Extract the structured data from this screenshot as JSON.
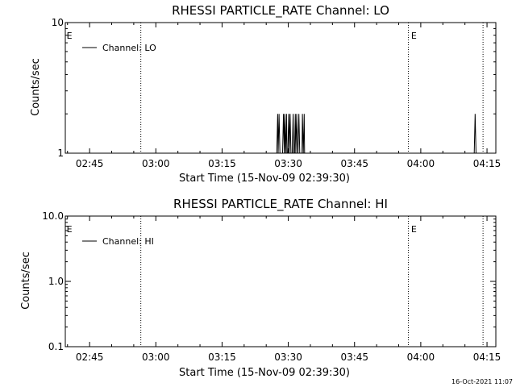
{
  "colors": {
    "background": "#ffffff",
    "foreground": "#000000"
  },
  "chart_data": [
    {
      "type": "line",
      "title": "RHESSI PARTICLE_RATE Channel: LO",
      "xlabel": "Start Time (15-Nov-09 02:39:30)",
      "ylabel": "Counts/sec",
      "x_unit": "minutes after start time",
      "xlim": [
        0,
        97.5
      ],
      "x_ticks": [
        {
          "t": 5.5,
          "label": "02:45"
        },
        {
          "t": 20.5,
          "label": "03:00"
        },
        {
          "t": 35.5,
          "label": "03:15"
        },
        {
          "t": 50.5,
          "label": "03:30"
        },
        {
          "t": 65.5,
          "label": "03:45"
        },
        {
          "t": 80.5,
          "label": "04:00"
        },
        {
          "t": 95.5,
          "label": "04:15"
        }
      ],
      "y_scale": "log",
      "ylim": [
        1,
        10
      ],
      "y_ticks": [
        {
          "v": 1,
          "label": "1"
        },
        {
          "v": 10,
          "label": "10"
        }
      ],
      "legend": {
        "label": "Channel: LO",
        "position": "top-left"
      },
      "event_lines": [
        17.1,
        77.7,
        94.6
      ],
      "event_markers": [
        {
          "t": 0.3,
          "text": "E"
        },
        {
          "t": 78.3,
          "text": "E"
        }
      ],
      "series": [
        {
          "name": "Channel: LO",
          "x": [
            0,
            47.9,
            48.1,
            48.2,
            48.4,
            48.6,
            48.7,
            48.9,
            49.1,
            49.2,
            49.4,
            49.6,
            49.7,
            49.9,
            50.1,
            50.2,
            50.4,
            50.6,
            50.7,
            50.9,
            51.1,
            51.2,
            51.4,
            51.6,
            51.7,
            51.9,
            52.1,
            52.2,
            52.4,
            52.6,
            52.7,
            52.9,
            53.1,
            53.2,
            53.4,
            53.6,
            53.7,
            53.9,
            54.1,
            54.2,
            54.4,
            54.6,
            54.7,
            54.9,
            92.6,
            92.8,
            93.0,
            93.2,
            93.4,
            97.5
          ],
          "y": [
            1,
            1,
            2,
            1,
            2,
            1,
            1,
            1,
            1,
            1,
            2,
            1,
            2,
            1,
            2,
            1,
            1,
            2,
            1,
            2,
            1,
            1,
            1,
            2,
            1,
            1,
            2,
            1,
            2,
            1,
            1,
            2,
            1,
            1,
            1,
            1,
            2,
            1,
            2,
            1,
            1,
            1,
            1,
            1,
            1,
            2,
            1,
            1,
            1,
            1
          ]
        }
      ]
    },
    {
      "type": "line",
      "title": "RHESSI PARTICLE_RATE Channel: HI",
      "xlabel": "Start Time (15-Nov-09 02:39:30)",
      "ylabel": "Counts/sec",
      "x_unit": "minutes after start time",
      "xlim": [
        0,
        97.5
      ],
      "x_ticks": [
        {
          "t": 5.5,
          "label": "02:45"
        },
        {
          "t": 20.5,
          "label": "03:00"
        },
        {
          "t": 35.5,
          "label": "03:15"
        },
        {
          "t": 50.5,
          "label": "03:30"
        },
        {
          "t": 65.5,
          "label": "03:45"
        },
        {
          "t": 80.5,
          "label": "04:00"
        },
        {
          "t": 95.5,
          "label": "04:15"
        }
      ],
      "y_scale": "log",
      "ylim": [
        0.1,
        10
      ],
      "y_ticks": [
        {
          "v": 0.1,
          "label": "0.1"
        },
        {
          "v": 1,
          "label": "1.0"
        },
        {
          "v": 10,
          "label": "10.0"
        }
      ],
      "legend": {
        "label": "Channel: HI",
        "position": "top-left"
      },
      "event_lines": [
        17.1,
        77.7,
        94.6
      ],
      "event_markers": [
        {
          "t": 0.3,
          "text": "E"
        },
        {
          "t": 78.3,
          "text": "E"
        }
      ],
      "series": [
        {
          "name": "Channel: HI",
          "x": [],
          "y": []
        }
      ]
    }
  ],
  "footer": {
    "timestamp": "16-Oct-2021 11:07"
  }
}
